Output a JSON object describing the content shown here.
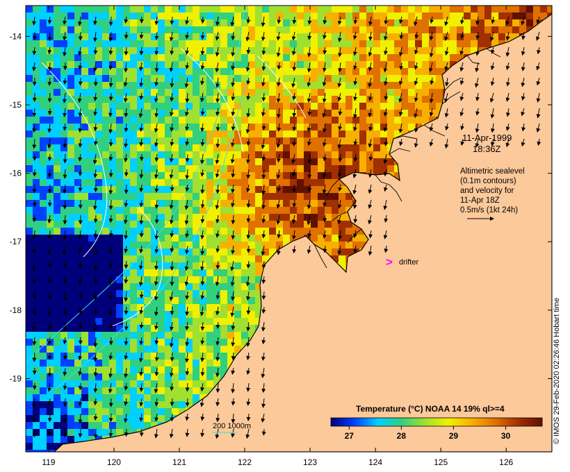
{
  "map": {
    "title_date": "11-Apr-1999",
    "title_time": "18:36Z",
    "legend_lines": [
      "Altimetric sealevel",
      "(0.1m contours)",
      "and velocity for",
      "11-Apr 18Z",
      "0.5m/s (1kt 24h)"
    ],
    "drifter_marker": ">",
    "drifter_label": "drifter",
    "isobath_label": "200  1000m",
    "lon_ticks": [
      119,
      120,
      121,
      122,
      123,
      124,
      125,
      126
    ],
    "lat_ticks": [
      -14,
      -15,
      -16,
      -17,
      -18,
      -19
    ],
    "lon_range": [
      118.65,
      126.7
    ],
    "lat_range": [
      -20.07,
      -13.55
    ],
    "colorbar": {
      "title": "Temperature (°C) NOAA 14 19% ql>=4",
      "ticks": [
        27,
        28,
        29,
        30
      ],
      "range": [
        26.65,
        30.7
      ],
      "colors": [
        "#00007a",
        "#0040ff",
        "#00d0ff",
        "#30d080",
        "#a0e030",
        "#f0f000",
        "#f8b000",
        "#e07000",
        "#a03000",
        "#601000"
      ]
    },
    "credit": "© IMOS 29-Feb-2020 02:26:46 Hobart time",
    "colors": {
      "land": "#fcc99a",
      "coast": "#000000",
      "isobath": "#40e0e0",
      "contour": "#ffffff",
      "drifter": "#ff00ff",
      "arrow": "#000000"
    }
  }
}
